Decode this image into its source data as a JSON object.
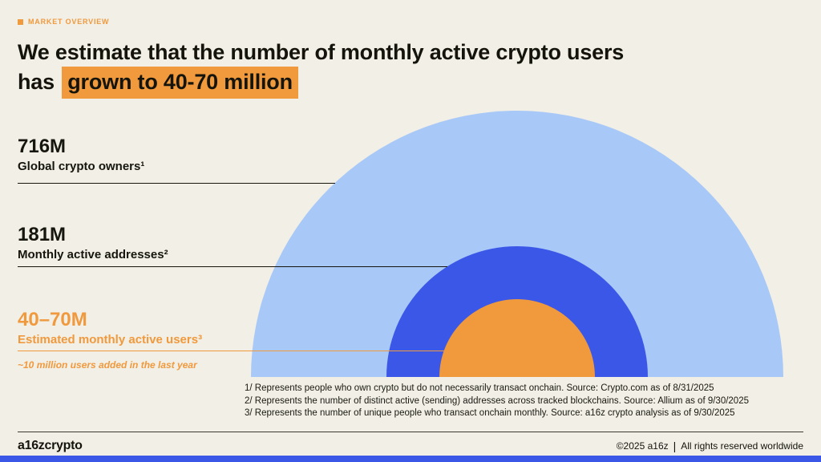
{
  "page": {
    "bg": "#F1EFE6",
    "accent_orange": "#F0993D",
    "blue_mid": "#3A57E8",
    "blue_light": "#A8C8F8",
    "text_dark": "#14140C"
  },
  "eyebrow": {
    "label": "MARKET OVERVIEW"
  },
  "title": {
    "line1": "We estimate that the number of monthly active crypto users",
    "line2_prefix": "has",
    "line2_highlight": "grown to 40-70 million"
  },
  "labels": [
    {
      "value": "716M",
      "name": "Global crypto owners¹"
    },
    {
      "value": "181M",
      "name": "Monthly active addresses²"
    },
    {
      "value": "40–70M",
      "name": "Estimated monthly active users³"
    }
  ],
  "annotation": "~10 million users added in the last year",
  "footnotes": [
    "1/ Represents people who own crypto but do not necessarily transact onchain. Source: Crypto.com as of 8/31/2025",
    "2/ Represents the number of distinct active (sending) addresses across tracked blockchains. Source: Allium as of 9/30/2025",
    "3/ Represents the number of unique people who transact onchain monthly. Source: a16z crypto analysis as of 9/30/2025"
  ],
  "footer": {
    "logo": "a16zcrypto",
    "copyright": "©2025 a16z",
    "separator": "|",
    "rights": "All rights reserved worldwide"
  },
  "chart_data": {
    "type": "pie",
    "variant": "nested-semicircles",
    "title": "Monthly active crypto users",
    "legend_position": "left",
    "series": [
      {
        "label": "Global crypto owners",
        "value_label": "716M",
        "value_millions": 716,
        "color": "#A8C8F8"
      },
      {
        "label": "Monthly active addresses",
        "value_label": "181M",
        "value_millions": 181,
        "color": "#3A57E8"
      },
      {
        "label": "Estimated monthly active users",
        "value_label": "40–70M",
        "value_millions_range": [
          40,
          70
        ],
        "color": "#F0993D"
      }
    ],
    "annotation": "~10 million users added in the last year"
  }
}
